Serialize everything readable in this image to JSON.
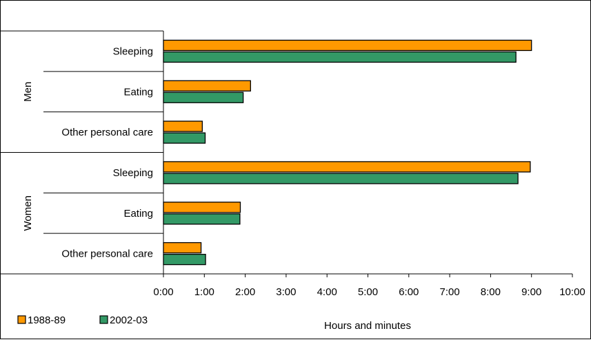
{
  "chart_data": {
    "type": "bar",
    "orientation": "horizontal",
    "groups": [
      {
        "name": "Men",
        "categories": [
          "Sleeping",
          "Eating",
          "Other personal care"
        ]
      },
      {
        "name": "Women",
        "categories": [
          "Sleeping",
          "Eating",
          "Other personal care"
        ]
      }
    ],
    "series": [
      {
        "name": "1988-89",
        "color": "#FF9900",
        "values": [
          9.0,
          2.13,
          0.95,
          8.97,
          1.88,
          0.92
        ]
      },
      {
        "name": "2002-03",
        "color": "#339966",
        "values": [
          8.62,
          1.95,
          1.02,
          8.67,
          1.87,
          1.03
        ]
      }
    ],
    "x_ticks": [
      "0:00",
      "1:00",
      "2:00",
      "3:00",
      "4:00",
      "5:00",
      "6:00",
      "7:00",
      "8:00",
      "9:00",
      "10:00"
    ],
    "xlim": [
      0,
      10
    ],
    "xlabel": "Hours and minutes",
    "grid": false,
    "legend_position": "bottom-left"
  }
}
